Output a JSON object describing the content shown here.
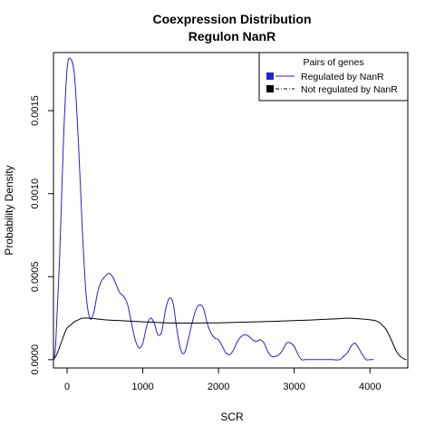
{
  "chart_data": {
    "type": "line",
    "title": "Coexpression Distribution",
    "subtitle": "Regulon NanR",
    "xlabel": "SCR",
    "ylabel": "Probability Density",
    "xlim": [
      -180,
      4500
    ],
    "ylim": [
      -5e-05,
      0.00185
    ],
    "x_ticks": [
      0,
      1000,
      2000,
      3000,
      4000
    ],
    "x_tick_labels": [
      "0",
      "1000",
      "2000",
      "3000",
      "4000"
    ],
    "y_ticks": [
      0.0,
      0.0005,
      0.001,
      0.0015
    ],
    "y_tick_labels": [
      "0.0000",
      "0.0005",
      "0.0010",
      "0.0015"
    ],
    "grid": false,
    "legend": {
      "title": "Pairs of genes",
      "placement": "top-right",
      "entries": [
        "Regulated by  NanR",
        "Not regulated by  NanR"
      ]
    },
    "series": [
      {
        "name": "Regulated by  NanR",
        "color": "#2222cc",
        "x": [
          -180,
          -150,
          -100,
          -50,
          0,
          50,
          100,
          150,
          200,
          250,
          300,
          350,
          400,
          450,
          500,
          550,
          600,
          650,
          700,
          750,
          800,
          850,
          900,
          950,
          1000,
          1050,
          1100,
          1150,
          1200,
          1250,
          1300,
          1350,
          1400,
          1450,
          1500,
          1550,
          1600,
          1650,
          1700,
          1750,
          1800,
          1850,
          1900,
          1950,
          2000,
          2050,
          2100,
          2150,
          2200,
          2250,
          2300,
          2350,
          2400,
          2450,
          2500,
          2550,
          2600,
          2650,
          2700,
          2750,
          2800,
          2850,
          2900,
          2950,
          3000,
          3050,
          3100,
          3150,
          3200,
          3300,
          3400,
          3500,
          3600,
          3650,
          3700,
          3750,
          3800,
          3850,
          3900,
          3950,
          4000,
          4050
        ],
        "y": [
          0.0,
          0.0001,
          0.0006,
          0.0013,
          0.00175,
          0.00181,
          0.0017,
          0.0013,
          0.0008,
          0.0004,
          0.00025,
          0.00028,
          0.0004,
          0.00047,
          0.0005,
          0.00052,
          0.0005,
          0.00045,
          0.0004,
          0.00038,
          0.00033,
          0.00022,
          0.00012,
          7e-05,
          0.0001,
          0.0002,
          0.00025,
          0.00022,
          0.00015,
          0.00017,
          0.0003,
          0.00037,
          0.00034,
          0.00018,
          6e-05,
          4e-05,
          0.00012,
          0.00022,
          0.0003,
          0.00033,
          0.00031,
          0.00022,
          0.00016,
          0.00013,
          0.00012,
          8e-05,
          4e-05,
          3e-05,
          6e-05,
          0.00011,
          0.00014,
          0.00015,
          0.00014,
          0.00012,
          0.00011,
          0.00012,
          0.0001,
          5e-05,
          2e-05,
          2e-05,
          3e-05,
          6e-05,
          0.0001,
          0.0001,
          8e-05,
          3e-05,
          0.0,
          0.0,
          0.0,
          0.0,
          0.0,
          0.0,
          0.0,
          2e-05,
          4e-05,
          8e-05,
          0.0001,
          7e-05,
          3e-05,
          0.0,
          0.0,
          0.0
        ]
      },
      {
        "name": "Not regulated by  NanR",
        "color": "#000000",
        "x": [
          -180,
          -150,
          -120,
          -80,
          -40,
          0,
          50,
          100,
          150,
          200,
          300,
          400,
          500,
          700,
          1000,
          1300,
          1600,
          2000,
          2500,
          3000,
          3500,
          3700,
          3800,
          3900,
          4000,
          4100,
          4200,
          4250,
          4300,
          4350,
          4400,
          4450,
          4480
        ],
        "y": [
          0.0,
          2e-05,
          5e-05,
          0.0001,
          0.00015,
          0.00019,
          0.00021,
          0.00023,
          0.00024,
          0.00025,
          0.00025,
          0.000245,
          0.00024,
          0.000235,
          0.000228,
          0.000222,
          0.00022,
          0.000222,
          0.000228,
          0.000235,
          0.000245,
          0.00025,
          0.000248,
          0.000245,
          0.00024,
          0.00023,
          0.00019,
          0.00015,
          0.0001,
          5e-05,
          2e-05,
          5e-06,
          0.0
        ]
      }
    ]
  }
}
